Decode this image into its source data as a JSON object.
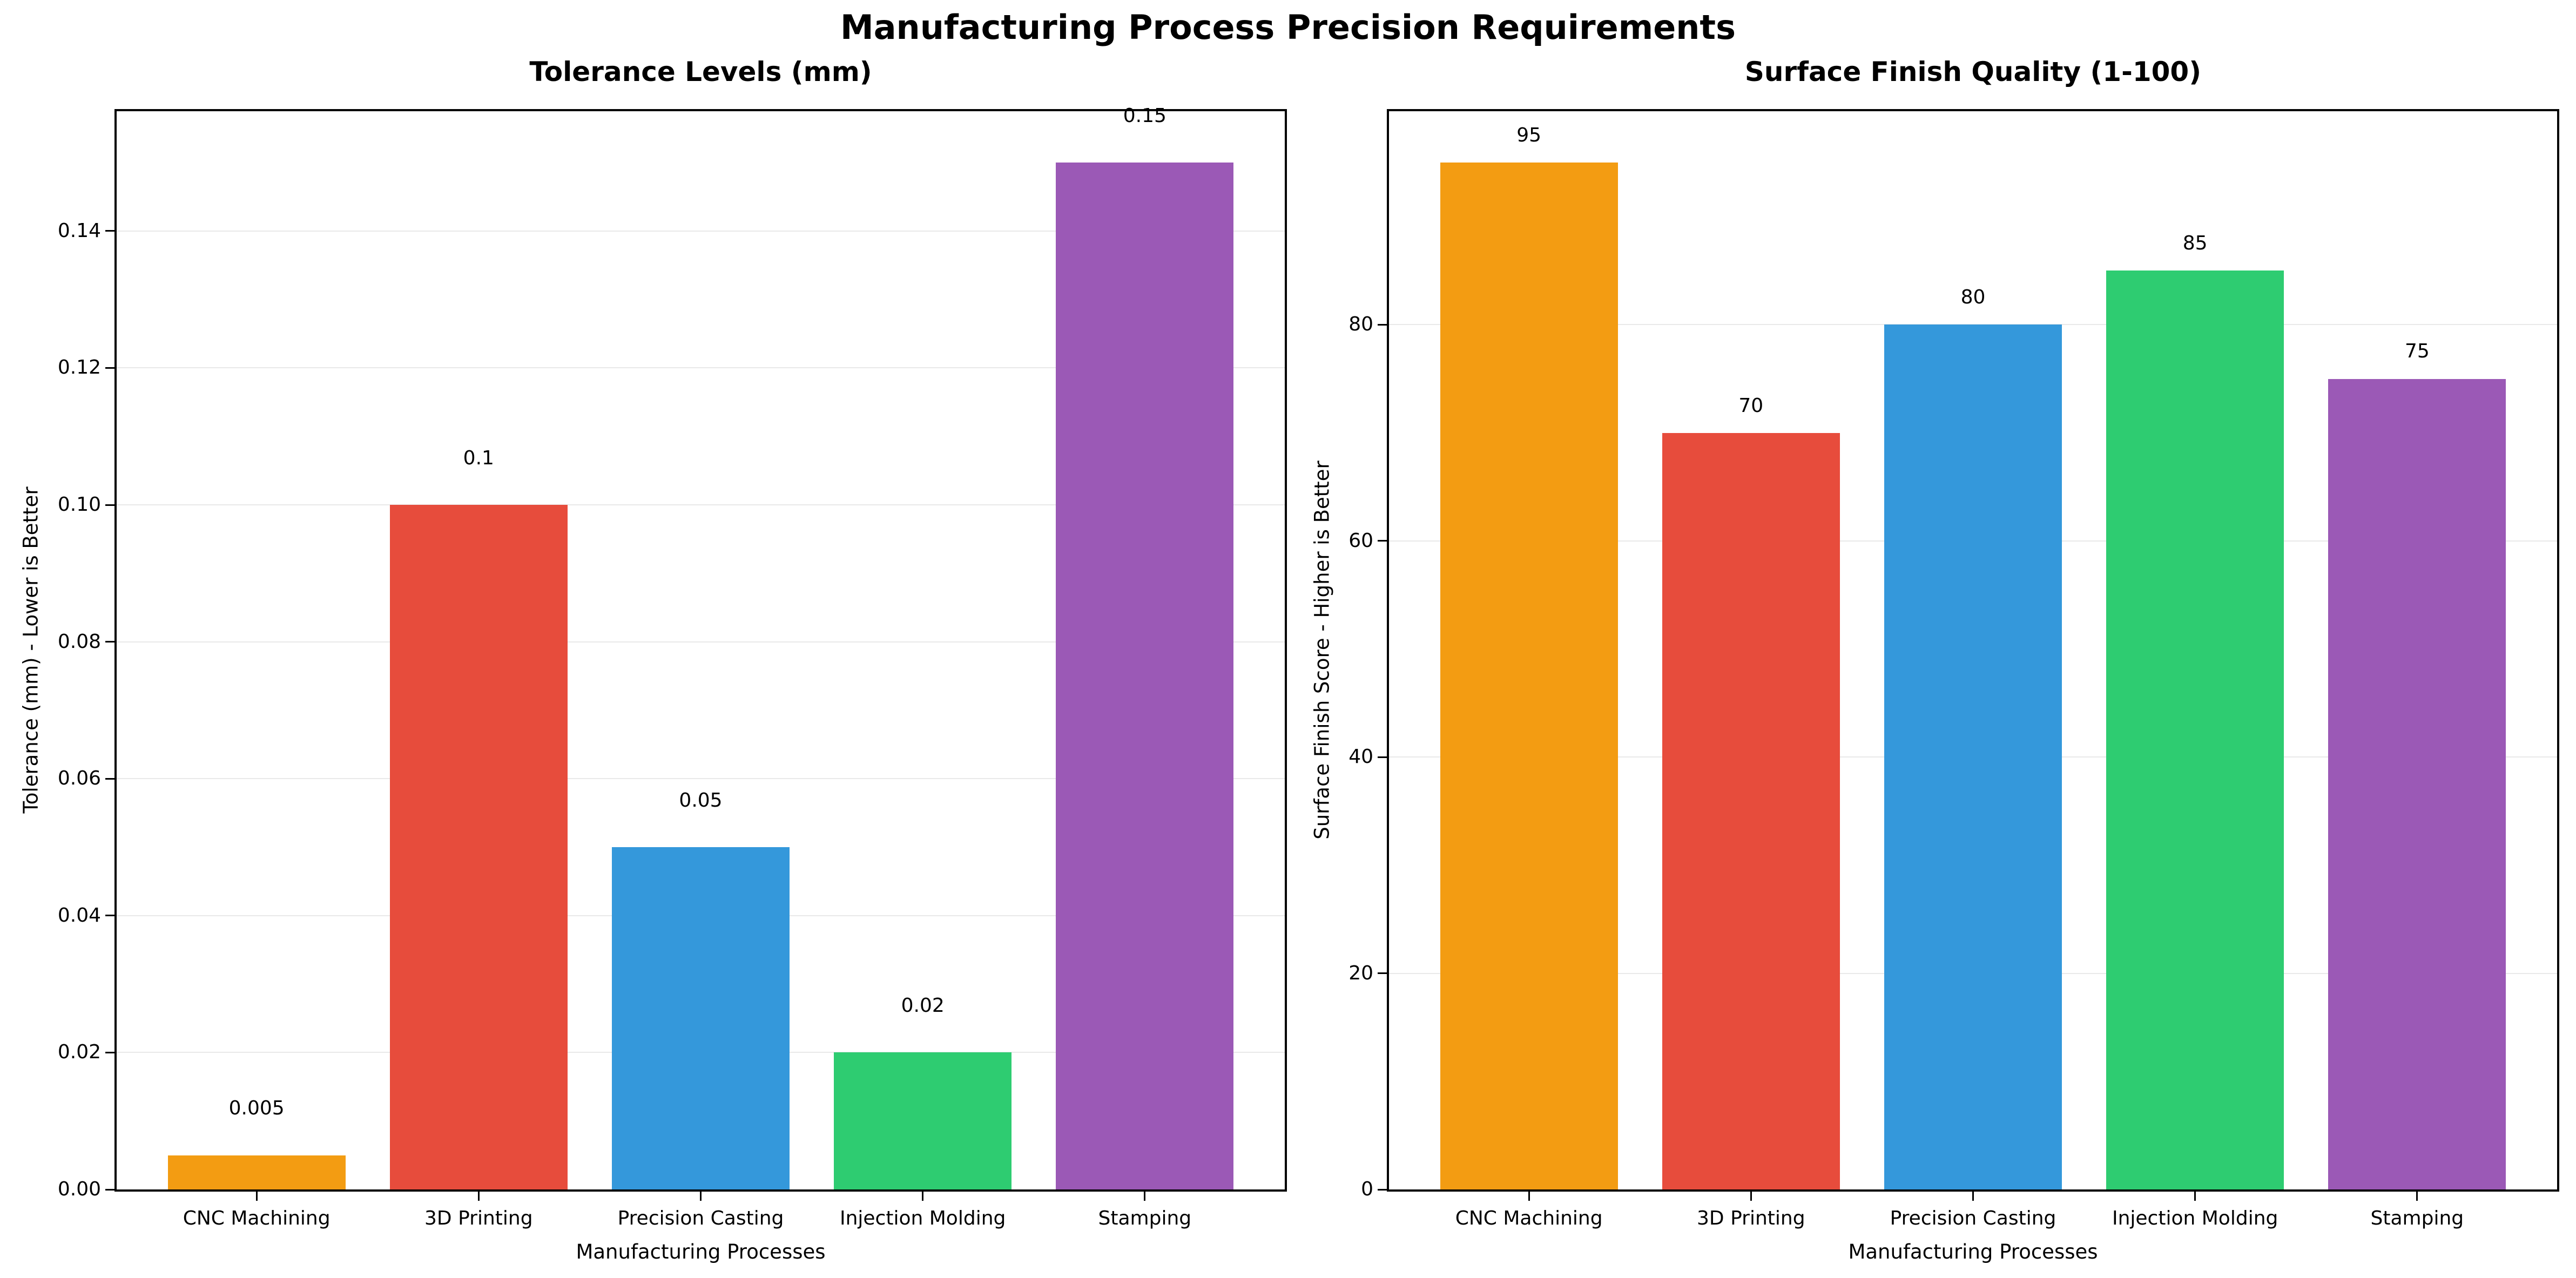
{
  "header": {
    "title": "Manufacturing Process Precision Requirements"
  },
  "colors": {
    "background": "#ffffff",
    "spine": "#000000",
    "grid": "#e9e9e9",
    "text": "#000000"
  },
  "chart_data": [
    {
      "type": "bar",
      "title": "Tolerance Levels (mm)",
      "xlabel": "Manufacturing Processes",
      "ylabel": "Tolerance (mm) - Lower is Better",
      "categories": [
        "CNC Machining",
        "3D Printing",
        "Precision Casting",
        "Injection Molding",
        "Stamping"
      ],
      "values": [
        0.005,
        0.1,
        0.05,
        0.02,
        0.15
      ],
      "bar_labels": [
        "0.005",
        "0.1",
        "0.05",
        "0.02",
        "0.15"
      ],
      "bar_colors": [
        "#f39c12",
        "#e74c3c",
        "#3498db",
        "#2ecc71",
        "#9b59b6"
      ],
      "ylim": [
        0,
        0.1575
      ],
      "yticks": [
        0,
        0.02,
        0.04,
        0.06,
        0.08,
        0.1,
        0.12,
        0.14
      ],
      "ytick_labels": [
        "0.00",
        "0.02",
        "0.04",
        "0.06",
        "0.08",
        "0.10",
        "0.12",
        "0.14"
      ],
      "value_label_offset": 0.005,
      "grid": true,
      "legend_position": "none"
    },
    {
      "type": "bar",
      "title": "Surface Finish Quality (1-100)",
      "xlabel": "Manufacturing Processes",
      "ylabel": "Surface Finish Score - Higher is Better",
      "categories": [
        "CNC Machining",
        "3D Printing",
        "Precision Casting",
        "Injection Molding",
        "Stamping"
      ],
      "values": [
        95,
        70,
        80,
        85,
        75
      ],
      "bar_labels": [
        "95",
        "70",
        "80",
        "85",
        "75"
      ],
      "bar_colors": [
        "#f39c12",
        "#e74c3c",
        "#3498db",
        "#2ecc71",
        "#9b59b6"
      ],
      "ylim": [
        0,
        99.75
      ],
      "yticks": [
        0,
        20,
        40,
        60,
        80
      ],
      "ytick_labels": [
        "0",
        "20",
        "40",
        "60",
        "80"
      ],
      "value_label_offset": 1.35,
      "grid": true,
      "legend_position": "none"
    }
  ]
}
